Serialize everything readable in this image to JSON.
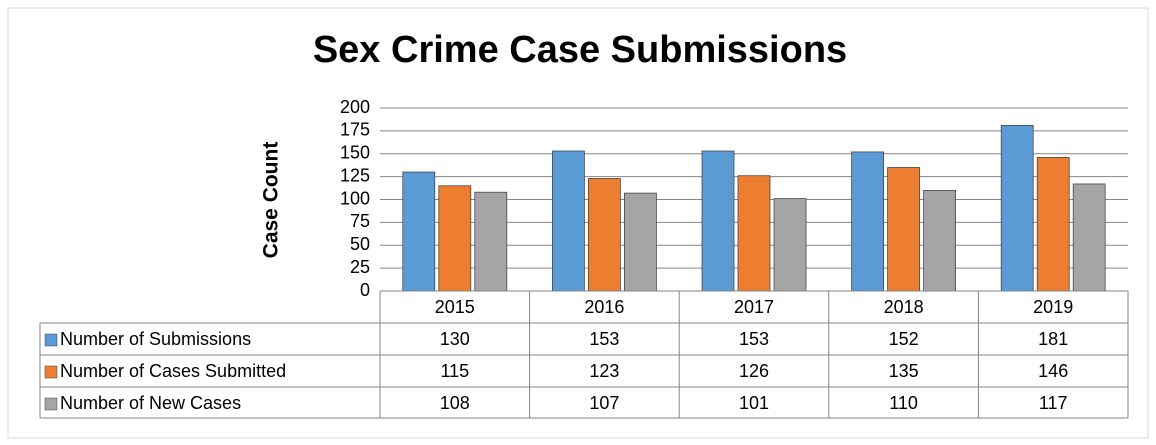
{
  "chart_data": {
    "type": "bar",
    "title": "Sex Crime Case Submissions",
    "y_label": "Case Count",
    "categories": [
      "2015",
      "2016",
      "2017",
      "2018",
      "2019"
    ],
    "series": [
      {
        "name": "Number of Submissions",
        "color": "#5b9bd5",
        "values": [
          130,
          153,
          153,
          152,
          181
        ]
      },
      {
        "name": "Number of Cases Submitted",
        "color": "#ed7d31",
        "values": [
          115,
          123,
          126,
          135,
          146
        ]
      },
      {
        "name": "Number of New Cases",
        "color": "#a5a5a5",
        "values": [
          108,
          107,
          101,
          110,
          117
        ]
      }
    ],
    "ylim": [
      0,
      200
    ],
    "yticks": [
      0,
      25,
      50,
      75,
      100,
      125,
      150,
      175,
      200
    ],
    "grid": true,
    "data_table": true
  }
}
